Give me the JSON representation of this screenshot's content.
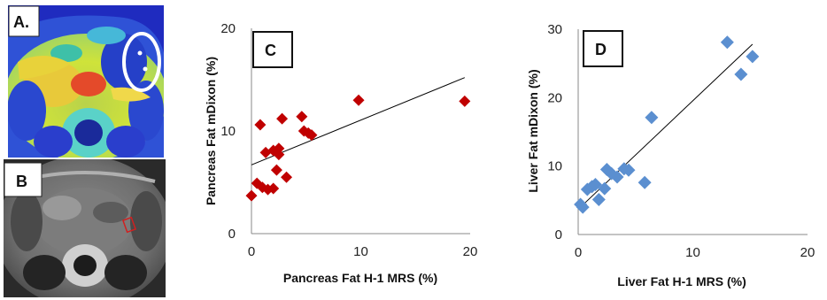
{
  "panels": {
    "a_label": "A.",
    "b_label": "B",
    "c_label": "C",
    "d_label": "D"
  },
  "colors": {
    "pancreas_marker": "#c00000",
    "liver_marker": "#5b8fd0",
    "fit_line": "#000000"
  },
  "chart_data": [
    {
      "id": "C",
      "type": "scatter",
      "title": "",
      "xlabel": "Pancreas Fat  H-1 MRS (%)",
      "ylabel": "Pancreas Fat mDixon (%)",
      "xlim": [
        0,
        20
      ],
      "ylim": [
        0,
        20
      ],
      "xticks": [
        0,
        10,
        20
      ],
      "yticks": [
        0,
        10,
        20
      ],
      "marker": "diamond",
      "trendline": {
        "x": [
          0,
          19.5
        ],
        "y": [
          6.7,
          15.2
        ]
      },
      "points": [
        {
          "x": 0.0,
          "y": 3.7
        },
        {
          "x": 0.5,
          "y": 4.9
        },
        {
          "x": 1.0,
          "y": 4.5
        },
        {
          "x": 0.8,
          "y": 10.6
        },
        {
          "x": 1.3,
          "y": 7.9
        },
        {
          "x": 1.5,
          "y": 4.3
        },
        {
          "x": 2.0,
          "y": 4.4
        },
        {
          "x": 2.0,
          "y": 8.1
        },
        {
          "x": 2.3,
          "y": 6.2
        },
        {
          "x": 2.5,
          "y": 8.3
        },
        {
          "x": 2.5,
          "y": 7.7
        },
        {
          "x": 2.8,
          "y": 11.2
        },
        {
          "x": 3.2,
          "y": 5.5
        },
        {
          "x": 4.6,
          "y": 11.4
        },
        {
          "x": 4.8,
          "y": 10.0
        },
        {
          "x": 5.2,
          "y": 9.8
        },
        {
          "x": 5.5,
          "y": 9.6
        },
        {
          "x": 9.8,
          "y": 13.0
        },
        {
          "x": 19.5,
          "y": 12.9
        }
      ]
    },
    {
      "id": "D",
      "type": "scatter",
      "title": "",
      "xlabel": "Liver Fat H-1 MRS (%)",
      "ylabel": "Liver Fat mDixon (%)",
      "xlim": [
        0,
        20
      ],
      "ylim": [
        0,
        30
      ],
      "xticks": [
        0,
        10,
        20
      ],
      "yticks": [
        0,
        10,
        20,
        30
      ],
      "marker": "diamond",
      "trendline": {
        "x": [
          0.2,
          15.2
        ],
        "y": [
          4.0,
          27.8
        ]
      },
      "points": [
        {
          "x": 0.2,
          "y": 4.4
        },
        {
          "x": 0.4,
          "y": 4.0
        },
        {
          "x": 0.8,
          "y": 6.6
        },
        {
          "x": 1.2,
          "y": 7.0
        },
        {
          "x": 1.5,
          "y": 7.3
        },
        {
          "x": 1.8,
          "y": 5.1
        },
        {
          "x": 2.3,
          "y": 6.7
        },
        {
          "x": 2.5,
          "y": 9.5
        },
        {
          "x": 2.9,
          "y": 8.9
        },
        {
          "x": 3.4,
          "y": 8.4
        },
        {
          "x": 4.0,
          "y": 9.6
        },
        {
          "x": 4.4,
          "y": 9.4
        },
        {
          "x": 5.8,
          "y": 7.6
        },
        {
          "x": 6.4,
          "y": 17.1
        },
        {
          "x": 13.0,
          "y": 28.1
        },
        {
          "x": 14.2,
          "y": 23.4
        },
        {
          "x": 15.2,
          "y": 26.0
        }
      ]
    }
  ]
}
